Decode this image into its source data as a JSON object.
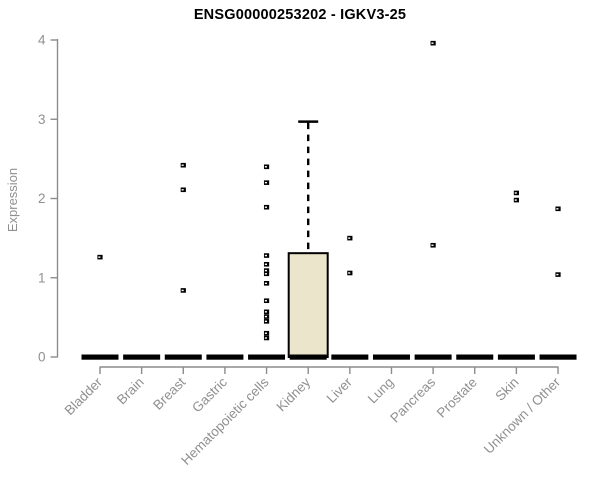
{
  "chart_data": {
    "type": "boxplot",
    "title": "ENSG00000253202 - IGKV3-25",
    "ylabel": "Expression",
    "xlabel": "",
    "ylim": [
      0,
      4
    ],
    "yticks": [
      0,
      1,
      2,
      3,
      4
    ],
    "grid": false,
    "legend": "none",
    "categories": [
      "Bladder",
      "Brain",
      "Breast",
      "Gastric",
      "Hematopoietic cells",
      "Kidney",
      "Liver",
      "Lung",
      "Pancreas",
      "Prostate",
      "Skin",
      "Unknown / Other"
    ],
    "boxes": [
      {
        "category": "Bladder",
        "q1": 0,
        "median": 0,
        "q3": 0,
        "whisker_low": 0,
        "whisker_high": 0,
        "outliers": [
          1.26
        ]
      },
      {
        "category": "Brain",
        "q1": 0,
        "median": 0,
        "q3": 0,
        "whisker_low": 0,
        "whisker_high": 0,
        "outliers": []
      },
      {
        "category": "Breast",
        "q1": 0,
        "median": 0,
        "q3": 0,
        "whisker_low": 0,
        "whisker_high": 0,
        "outliers": [
          2.42,
          2.11,
          0.84
        ]
      },
      {
        "category": "Gastric",
        "q1": 0,
        "median": 0,
        "q3": 0,
        "whisker_low": 0,
        "whisker_high": 0,
        "outliers": []
      },
      {
        "category": "Hematopoietic cells",
        "q1": 0,
        "median": 0,
        "q3": 0,
        "whisker_low": 0,
        "whisker_high": 0,
        "outliers": [
          2.4,
          2.2,
          1.89,
          1.28,
          1.17,
          1.09,
          1.05,
          0.93,
          0.71,
          0.57,
          0.51,
          0.45,
          0.3,
          0.24
        ]
      },
      {
        "category": "Kidney",
        "q1": 0,
        "median": 0,
        "q3": 1.31,
        "whisker_low": 0,
        "whisker_high": 2.97,
        "outliers": []
      },
      {
        "category": "Liver",
        "q1": 0,
        "median": 0,
        "q3": 0,
        "whisker_low": 0,
        "whisker_high": 0,
        "outliers": [
          1.5,
          1.06
        ]
      },
      {
        "category": "Lung",
        "q1": 0,
        "median": 0,
        "q3": 0,
        "whisker_low": 0,
        "whisker_high": 0,
        "outliers": []
      },
      {
        "category": "Pancreas",
        "q1": 0,
        "median": 0,
        "q3": 0,
        "whisker_low": 0,
        "whisker_high": 0,
        "outliers": [
          3.96,
          1.41
        ]
      },
      {
        "category": "Prostate",
        "q1": 0,
        "median": 0,
        "q3": 0,
        "whisker_low": 0,
        "whisker_high": 0,
        "outliers": []
      },
      {
        "category": "Skin",
        "q1": 0,
        "median": 0,
        "q3": 0,
        "whisker_low": 0,
        "whisker_high": 0,
        "outliers": [
          2.07,
          1.98
        ]
      },
      {
        "category": "Unknown / Other",
        "q1": 0,
        "median": 0,
        "q3": 0,
        "whisker_low": 0,
        "whisker_high": 0,
        "outliers": [
          1.87,
          1.04
        ]
      }
    ],
    "colors": {
      "box_fill": "#EBE6CB",
      "box_border": "#000000",
      "median": "#000000",
      "whisker": "#000000",
      "point": "#000000",
      "point_center": "#ffffff",
      "axis": "#8C8C8C",
      "tick_label": "#909090",
      "title": "#000000"
    }
  }
}
